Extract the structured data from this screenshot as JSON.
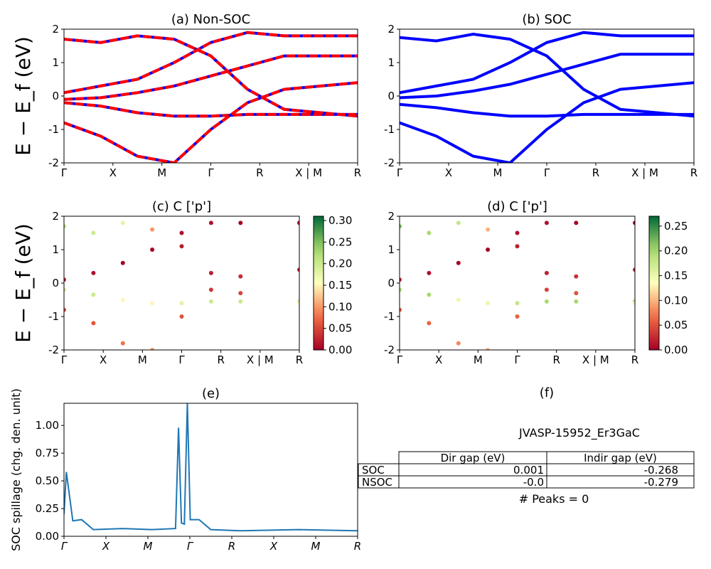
{
  "figure": {
    "name": "JVASP-15952_Er3GaC"
  },
  "kpath_labels": [
    "Γ",
    "X",
    "M",
    "Γ",
    "R",
    "X | M",
    "R"
  ],
  "kpath_labels_e": [
    "Γ",
    "X",
    "M",
    "Γ",
    "R",
    "X",
    "M",
    "R"
  ],
  "energy_axis_label": "E − E_f (eV)",
  "colors": {
    "nonsoc_solid": "#0000ff",
    "nonsoc_dash": "#ff0000",
    "soc": "#0000ff",
    "spillage": "#1f77b4"
  },
  "chart_data": [
    {
      "panel": "a",
      "type": "line",
      "title": "(a) Non-SOC",
      "xlabel": "",
      "ylabel": "E − E_f (eV)",
      "ylim": [
        -2,
        2
      ],
      "yticks": [
        -2,
        -1,
        0,
        1,
        2
      ],
      "x_ticks": [
        "Γ",
        "X",
        "M",
        "Γ",
        "R",
        "X | M",
        "R"
      ],
      "style": "blue solid with red dashed overlay",
      "series": [
        {
          "x": [
            0,
            0.25,
            0.5,
            0.75,
            1,
            1.25,
            1.5,
            2
          ],
          "y": [
            -0.2,
            -0.3,
            -0.5,
            -0.6,
            -0.6,
            -0.55,
            -0.55,
            -0.55
          ]
        },
        {
          "x": [
            0,
            0.25,
            0.5,
            0.75,
            1,
            1.25,
            1.5,
            2
          ],
          "y": [
            -0.1,
            -0.05,
            0.1,
            0.3,
            0.6,
            0.9,
            1.2,
            1.2
          ]
        },
        {
          "x": [
            0,
            0.25,
            0.5,
            0.75,
            1,
            1.25,
            1.5,
            2
          ],
          "y": [
            1.7,
            1.6,
            1.8,
            1.7,
            1.2,
            0.2,
            -0.4,
            -0.6
          ]
        },
        {
          "x": [
            0,
            0.25,
            0.5,
            0.75,
            1,
            1.25,
            1.5,
            2
          ],
          "y": [
            -0.8,
            -1.2,
            -1.8,
            -2.0,
            -1.0,
            -0.2,
            0.2,
            0.4
          ]
        },
        {
          "x": [
            0,
            0.25,
            0.5,
            0.75,
            1,
            1.25,
            1.5,
            2
          ],
          "y": [
            0.1,
            0.3,
            0.5,
            1.0,
            1.6,
            1.9,
            1.8,
            1.8
          ]
        }
      ]
    },
    {
      "panel": "b",
      "type": "line",
      "title": "(b) SOC",
      "xlabel": "",
      "ylabel": "",
      "ylim": [
        -2,
        2
      ],
      "yticks": [
        -2,
        -1,
        0,
        1,
        2
      ],
      "x_ticks": [
        "Γ",
        "X",
        "M",
        "Γ",
        "R",
        "X | M",
        "R"
      ],
      "style": "blue solid",
      "series": [
        {
          "x": [
            0,
            0.25,
            0.5,
            0.75,
            1,
            1.25,
            1.5,
            2
          ],
          "y": [
            -0.25,
            -0.35,
            -0.5,
            -0.6,
            -0.6,
            -0.55,
            -0.55,
            -0.55
          ]
        },
        {
          "x": [
            0,
            0.25,
            0.5,
            0.75,
            1,
            1.25,
            1.5,
            2
          ],
          "y": [
            -0.05,
            0.0,
            0.15,
            0.35,
            0.65,
            0.95,
            1.25,
            1.25
          ]
        },
        {
          "x": [
            0,
            0.25,
            0.5,
            0.75,
            1,
            1.25,
            1.5,
            2
          ],
          "y": [
            1.75,
            1.65,
            1.85,
            1.7,
            1.2,
            0.2,
            -0.4,
            -0.6
          ]
        },
        {
          "x": [
            0,
            0.25,
            0.5,
            0.75,
            1,
            1.25,
            1.5,
            2
          ],
          "y": [
            -0.8,
            -1.2,
            -1.8,
            -2.0,
            -1.0,
            -0.2,
            0.2,
            0.4
          ]
        },
        {
          "x": [
            0,
            0.25,
            0.5,
            0.75,
            1,
            1.25,
            1.5,
            2
          ],
          "y": [
            0.1,
            0.3,
            0.5,
            1.0,
            1.6,
            1.9,
            1.8,
            1.8
          ]
        }
      ]
    },
    {
      "panel": "c",
      "type": "scatter",
      "title": "(c)  C ['p']",
      "xlabel": "",
      "ylabel": "E − E_f (eV)",
      "ylim": [
        -2,
        2
      ],
      "yticks": [
        -2,
        -1,
        0,
        1,
        2
      ],
      "x_ticks": [
        "Γ",
        "X",
        "M",
        "Γ",
        "R",
        "X | M",
        "R"
      ],
      "colorbar": {
        "min": 0.0,
        "max": 0.31,
        "ticks": [
          "0.00",
          "0.05",
          "0.10",
          "0.15",
          "0.20",
          "0.25",
          "0.30"
        ],
        "cmap": "RdYlGn"
      },
      "series": [
        {
          "band": 1,
          "x": [
            0,
            0.25,
            0.5,
            0.75,
            1,
            1.25,
            1.5,
            2
          ],
          "y": [
            -0.2,
            -0.35,
            -0.5,
            -0.6,
            -0.6,
            -0.55,
            -0.55,
            -0.55
          ],
          "weight": [
            0.2,
            0.2,
            0.15,
            0.15,
            0.18,
            0.2,
            0.2,
            0.2
          ]
        },
        {
          "band": 2,
          "x": [
            0,
            0.25,
            0.5,
            0.75,
            1,
            1.25,
            1.5,
            2
          ],
          "y": [
            1.7,
            1.5,
            1.8,
            1.6,
            1.1,
            0.3,
            -0.3,
            -0.6
          ],
          "weight": [
            0.22,
            0.2,
            0.18,
            0.1,
            0.02,
            0.02,
            0.05,
            0.15
          ]
        },
        {
          "band": 3,
          "x": [
            0,
            0.25,
            0.5,
            0.75,
            1,
            1.25,
            1.5,
            2
          ],
          "y": [
            0.1,
            0.3,
            0.6,
            1.0,
            1.5,
            1.8,
            1.8,
            1.8
          ],
          "weight": [
            0.02,
            0.01,
            0.0,
            0.0,
            0.01,
            0.01,
            0.0,
            0.0
          ]
        },
        {
          "band": 4,
          "x": [
            0,
            0.25,
            0.5,
            0.75,
            1,
            1.25,
            1.5,
            2
          ],
          "y": [
            -0.8,
            -1.2,
            -1.8,
            -2.0,
            -1.0,
            -0.2,
            0.2,
            0.4
          ],
          "weight": [
            0.05,
            0.06,
            0.08,
            0.1,
            0.06,
            0.04,
            0.03,
            0.02
          ]
        }
      ]
    },
    {
      "panel": "d",
      "type": "scatter",
      "title": "(d) C ['p']",
      "xlabel": "",
      "ylabel": "",
      "ylim": [
        -2,
        2
      ],
      "yticks": [
        -2,
        -1,
        0,
        1,
        2
      ],
      "x_ticks": [
        "Γ",
        "X",
        "M",
        "Γ",
        "R",
        "X | M",
        "R"
      ],
      "colorbar": {
        "min": 0.0,
        "max": 0.27,
        "ticks": [
          "0.00",
          "0.05",
          "0.10",
          "0.15",
          "0.20",
          "0.25"
        ],
        "cmap": "RdYlGn"
      },
      "series": [
        {
          "band": 1,
          "x": [
            0,
            0.25,
            0.5,
            0.75,
            1,
            1.25,
            1.5,
            2
          ],
          "y": [
            -0.2,
            -0.35,
            -0.5,
            -0.6,
            -0.6,
            -0.55,
            -0.55,
            -0.55
          ],
          "weight": [
            0.2,
            0.2,
            0.15,
            0.15,
            0.18,
            0.2,
            0.2,
            0.2
          ]
        },
        {
          "band": 2,
          "x": [
            0,
            0.25,
            0.5,
            0.75,
            1,
            1.25,
            1.5,
            2
          ],
          "y": [
            1.7,
            1.5,
            1.8,
            1.6,
            1.1,
            0.3,
            -0.3,
            -0.6
          ],
          "weight": [
            0.22,
            0.2,
            0.18,
            0.1,
            0.02,
            0.02,
            0.05,
            0.15
          ]
        },
        {
          "band": 3,
          "x": [
            0,
            0.25,
            0.5,
            0.75,
            1,
            1.25,
            1.5,
            2
          ],
          "y": [
            0.1,
            0.3,
            0.6,
            1.0,
            1.5,
            1.8,
            1.8,
            1.8
          ],
          "weight": [
            0.02,
            0.01,
            0.0,
            0.0,
            0.01,
            0.01,
            0.0,
            0.0
          ]
        },
        {
          "band": 4,
          "x": [
            0,
            0.25,
            0.5,
            0.75,
            1,
            1.25,
            1.5,
            2
          ],
          "y": [
            -0.8,
            -1.2,
            -1.8,
            -2.0,
            -1.0,
            -0.2,
            0.2,
            0.4
          ],
          "weight": [
            0.05,
            0.06,
            0.08,
            0.1,
            0.06,
            0.04,
            0.03,
            0.02
          ]
        }
      ]
    },
    {
      "panel": "e",
      "type": "line",
      "title": "(e)",
      "xlabel": "",
      "ylabel": "SOC spillage (chg. den. unit)",
      "ylim": [
        0,
        1.2
      ],
      "yticks": [
        "0.00",
        "0.25",
        "0.50",
        "0.75",
        "1.00"
      ],
      "x_ticks": [
        "Γ",
        "X",
        "M",
        "Γ",
        "R",
        "X",
        "M",
        "R"
      ],
      "series": [
        {
          "x": [
            0,
            0.04,
            0.15,
            0.3,
            0.5,
            1,
            1.5,
            1.9,
            1.95,
            2,
            2.05,
            2.1,
            2.15,
            2.3,
            2.5,
            3,
            4,
            5
          ],
          "y": [
            0.2,
            0.58,
            0.14,
            0.15,
            0.06,
            0.07,
            0.06,
            0.07,
            0.98,
            0.12,
            0.11,
            1.2,
            0.15,
            0.15,
            0.06,
            0.05,
            0.06,
            0.05
          ]
        }
      ]
    },
    {
      "panel": "f",
      "type": "table",
      "title": "(f)",
      "subtitle": "JVASP-15952_Er3GaC",
      "columns": [
        "Dir gap (eV)",
        "Indir gap (eV)"
      ],
      "rows": [
        {
          "label": "SOC",
          "values": [
            "0.001",
            "-0.268"
          ]
        },
        {
          "label": "NSOC",
          "values": [
            "-0.0",
            "-0.279"
          ]
        }
      ],
      "footer": "# Peaks = 0"
    }
  ]
}
